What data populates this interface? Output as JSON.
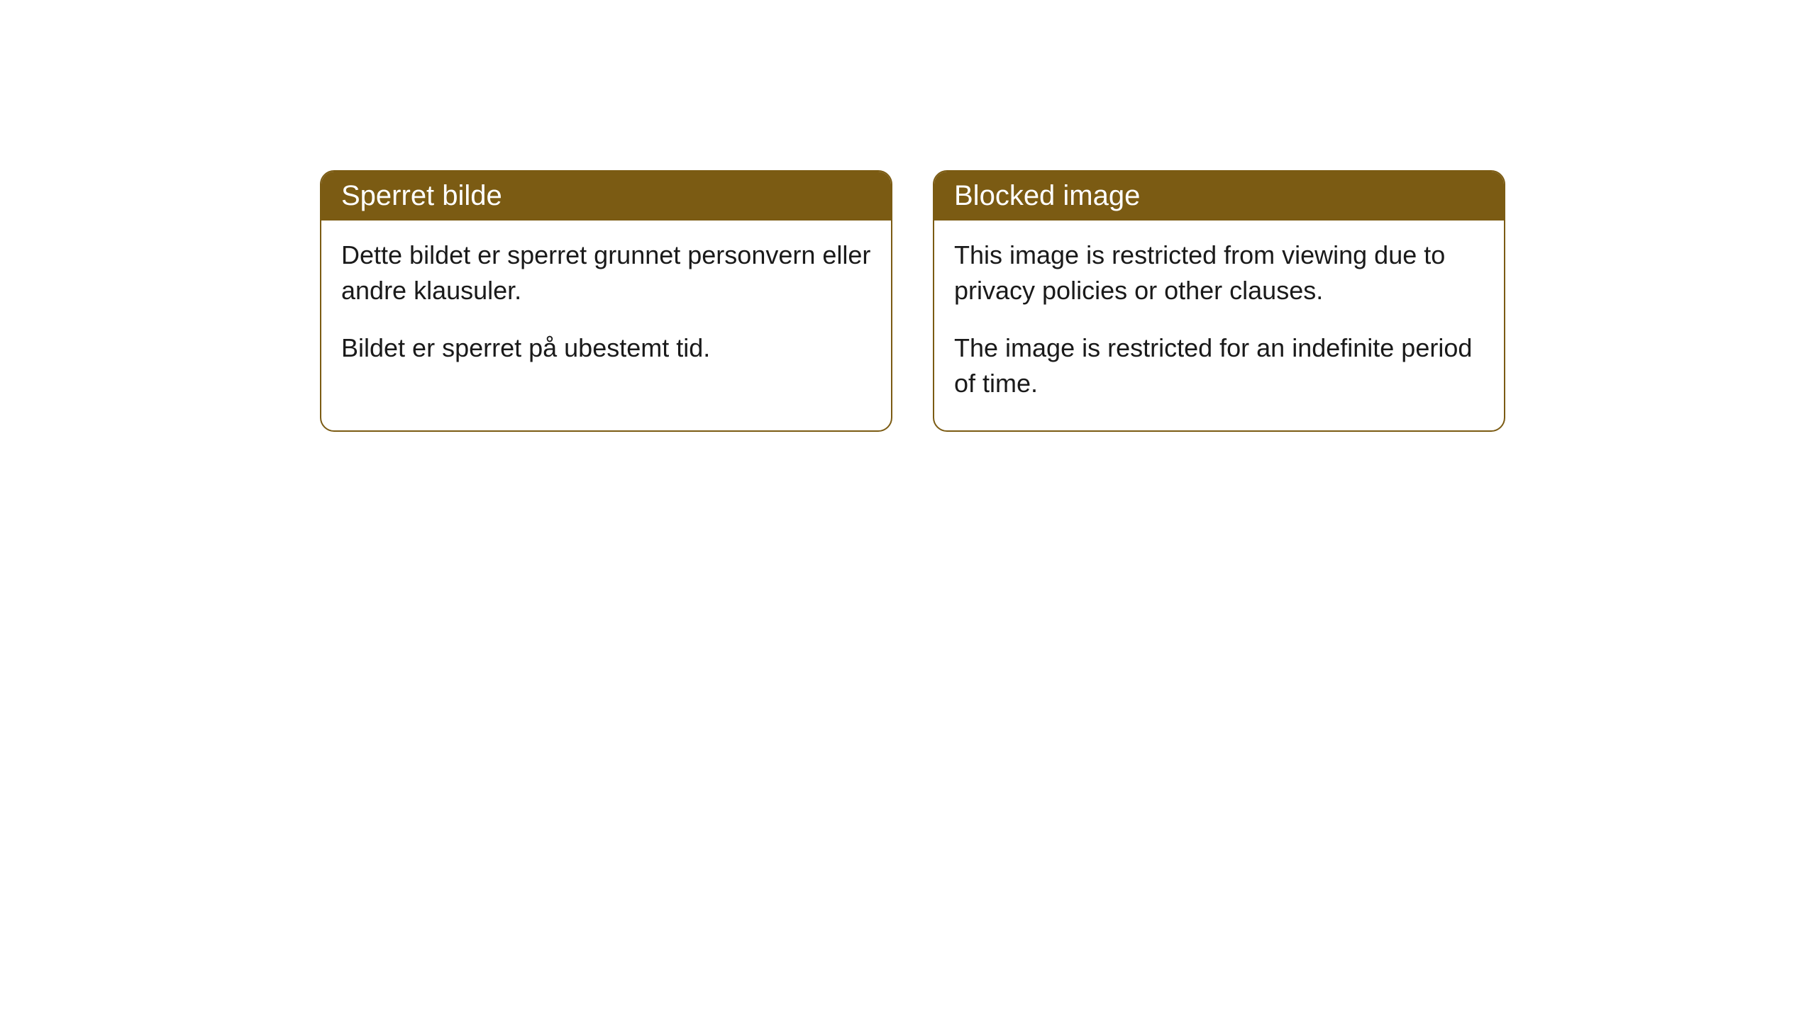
{
  "cards": [
    {
      "title": "Sperret bilde",
      "paragraph1": "Dette bildet er sperret grunnet personvern eller andre klausuler.",
      "paragraph2": "Bildet er sperret på ubestemt tid."
    },
    {
      "title": "Blocked image",
      "paragraph1": "This image is restricted from viewing due to privacy policies or other clauses.",
      "paragraph2": "The image is restricted for an indefinite period of time."
    }
  ],
  "styling": {
    "header_bg_color": "#7b5b13",
    "header_text_color": "#ffffff",
    "border_color": "#7b5b13",
    "body_bg_color": "#ffffff",
    "body_text_color": "#1a1a1a",
    "border_radius": 20,
    "title_fontsize": 40,
    "body_fontsize": 36
  }
}
